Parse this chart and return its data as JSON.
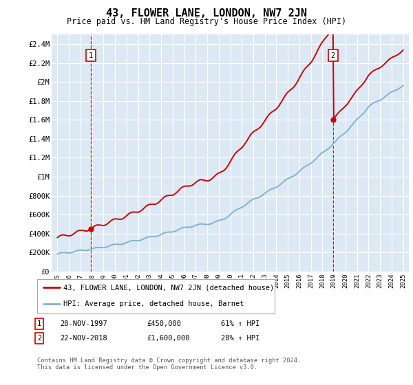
{
  "title": "43, FLOWER LANE, LONDON, NW7 2JN",
  "subtitle": "Price paid vs. HM Land Registry's House Price Index (HPI)",
  "legend_label_red": "43, FLOWER LANE, LONDON, NW7 2JN (detached house)",
  "legend_label_blue": "HPI: Average price, detached house, Barnet",
  "annotation1_date": "28-NOV-1997",
  "annotation1_price": 450000,
  "annotation1_price_str": "£450,000",
  "annotation1_pct": "61% ↑ HPI",
  "annotation1_year": 1997.917,
  "annotation2_date": "22-NOV-2018",
  "annotation2_price": 1600000,
  "annotation2_price_str": "£1,600,000",
  "annotation2_pct": "28% ↑ HPI",
  "annotation2_year": 2018.917,
  "footer": "Contains HM Land Registry data © Crown copyright and database right 2024.\nThis data is licensed under the Open Government Licence v3.0.",
  "ylim": [
    0,
    2500000
  ],
  "yticks": [
    0,
    200000,
    400000,
    600000,
    800000,
    1000000,
    1200000,
    1400000,
    1600000,
    1800000,
    2000000,
    2200000,
    2400000
  ],
  "ytick_labels": [
    "£0",
    "£200K",
    "£400K",
    "£600K",
    "£800K",
    "£1M",
    "£1.2M",
    "£1.4M",
    "£1.6M",
    "£1.8M",
    "£2M",
    "£2.2M",
    "£2.4M"
  ],
  "xlim_start": 1994.5,
  "xlim_end": 2025.5,
  "background_color": "#dce9f5",
  "fig_background": "#ffffff",
  "red_color": "#cc0000",
  "blue_color": "#7fb3d3",
  "grid_color": "#ffffff",
  "vline_color": "#cc0000",
  "marker_color_red": "#cc0000"
}
